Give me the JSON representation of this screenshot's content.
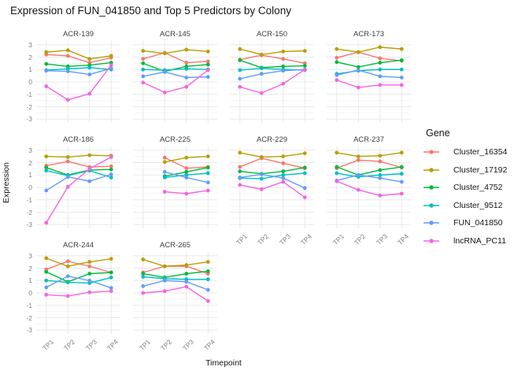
{
  "title": "Expression of FUN_041850 and Top 5 Predictors by Colony",
  "legend": {
    "title": "Gene",
    "entries": [
      {
        "label": "Cluster_16354",
        "color": "#F8766D"
      },
      {
        "label": "Cluster_17192",
        "color": "#B79F00"
      },
      {
        "label": "Cluster_4752",
        "color": "#00BA38"
      },
      {
        "label": "Cluster_9512",
        "color": "#00BFC4"
      },
      {
        "label": "FUN_041850",
        "color": "#619CFF"
      },
      {
        "label": "lncRNA_PC11",
        "color": "#F564E3"
      }
    ]
  },
  "chart_data": {
    "type": "line",
    "title": "Expression of FUN_041850 and Top 5 Predictors by Colony",
    "xlabel": "Timepoint",
    "ylabel": "Expression",
    "x": [
      "TP1",
      "TP2",
      "TP3",
      "TP4"
    ],
    "ylim": [
      -3,
      3
    ],
    "y_ticks": [
      3,
      2,
      1,
      0,
      -1,
      -2,
      -3
    ],
    "grid": "major+minor",
    "legend_position": "right",
    "series_names": [
      "Cluster_16354",
      "Cluster_17192",
      "Cluster_4752",
      "Cluster_9512",
      "FUN_041850",
      "lncRNA_PC11"
    ],
    "series_colors": [
      "#F8766D",
      "#B79F00",
      "#00BA38",
      "#00BFC4",
      "#619CFF",
      "#F564E3"
    ],
    "facets": [
      {
        "name": "ACR-139",
        "values": {
          "Cluster_16354": [
            2.2,
            2.1,
            1.55,
            1.95
          ],
          "Cluster_17192": [
            2.4,
            2.55,
            1.85,
            2.1
          ],
          "Cluster_4752": [
            1.45,
            1.25,
            1.35,
            1.55
          ],
          "Cluster_9512": [
            0.95,
            1.05,
            1.15,
            1.0
          ],
          "FUN_041850": [
            0.9,
            0.85,
            0.6,
            1.1
          ],
          "lncRNA_PC11": [
            -0.35,
            -1.45,
            -0.95,
            1.35
          ]
        }
      },
      {
        "name": "ACR-145",
        "values": {
          "Cluster_16354": [
            1.85,
            2.35,
            1.55,
            1.65
          ],
          "Cluster_17192": [
            2.5,
            2.3,
            2.6,
            2.45
          ],
          "Cluster_4752": [
            1.5,
            0.85,
            1.25,
            1.4
          ],
          "Cluster_9512": [
            1.0,
            0.95,
            1.05,
            1.0
          ],
          "FUN_041850": [
            0.45,
            0.8,
            0.35,
            0.4
          ],
          "lncRNA_PC11": [
            -0.05,
            -0.85,
            -0.4,
            0.95
          ]
        }
      },
      {
        "name": "ACR-150",
        "values": {
          "Cluster_16354": [
            1.8,
            2.15,
            1.85,
            1.5
          ],
          "Cluster_17192": [
            2.65,
            2.2,
            2.45,
            2.5
          ],
          "Cluster_4752": [
            1.75,
            1.15,
            1.25,
            1.3
          ],
          "Cluster_9512": [
            0.95,
            1.1,
            1.0,
            0.95
          ],
          "FUN_041850": [
            0.25,
            0.65,
            0.9,
            1.0
          ],
          "lncRNA_PC11": [
            -0.4,
            -0.9,
            -0.15,
            1.0
          ]
        }
      },
      {
        "name": "ACR-173",
        "values": {
          "Cluster_16354": [
            1.95,
            2.4,
            1.9,
            1.7
          ],
          "Cluster_17192": [
            2.65,
            2.4,
            2.8,
            2.65
          ],
          "Cluster_4752": [
            1.6,
            1.2,
            1.55,
            1.75
          ],
          "Cluster_9512": [
            0.65,
            0.9,
            1.0,
            1.0
          ],
          "FUN_041850": [
            0.55,
            0.95,
            0.45,
            0.35
          ],
          "lncRNA_PC11": [
            0.15,
            -0.45,
            -0.25,
            -0.25
          ]
        }
      },
      {
        "name": "ACR-186",
        "values": {
          "Cluster_16354": [
            1.75,
            2.1,
            1.65,
            1.7
          ],
          "Cluster_17192": [
            2.5,
            2.45,
            2.6,
            2.55
          ],
          "Cluster_4752": [
            1.6,
            1.0,
            1.4,
            1.45
          ],
          "Cluster_9512": [
            1.35,
            0.95,
            1.35,
            0.8
          ],
          "FUN_041850": [
            -0.25,
            0.85,
            0.5,
            1.05
          ],
          "lncRNA_PC11": [
            -2.85,
            0.05,
            1.5,
            2.45
          ]
        }
      },
      {
        "name": "ACR-225",
        "values": {
          "Cluster_16354": [
            null,
            2.4,
            1.55,
            1.65
          ],
          "Cluster_17192": [
            null,
            2.05,
            2.4,
            2.5
          ],
          "Cluster_4752": [
            null,
            0.9,
            1.25,
            1.6
          ],
          "Cluster_9512": [
            null,
            0.8,
            1.0,
            1.15
          ],
          "FUN_041850": [
            null,
            1.25,
            0.8,
            0.4
          ],
          "lncRNA_PC11": [
            null,
            -0.35,
            -0.5,
            -0.25
          ]
        }
      },
      {
        "name": "ACR-229",
        "values": {
          "Cluster_16354": [
            1.65,
            2.35,
            1.95,
            1.55
          ],
          "Cluster_17192": [
            2.8,
            2.45,
            2.5,
            2.75
          ],
          "Cluster_4752": [
            1.3,
            1.1,
            1.3,
            1.6
          ],
          "Cluster_9512": [
            0.75,
            0.7,
            1.0,
            1.15
          ],
          "FUN_041850": [
            0.8,
            1.05,
            0.75,
            -0.05
          ],
          "lncRNA_PC11": [
            0.2,
            -0.15,
            0.45,
            -0.8
          ]
        }
      },
      {
        "name": "ACR-237",
        "values": {
          "Cluster_16354": [
            1.55,
            2.2,
            2.1,
            1.6
          ],
          "Cluster_17192": [
            2.8,
            2.5,
            2.55,
            2.8
          ],
          "Cluster_4752": [
            1.65,
            1.0,
            1.4,
            1.65
          ],
          "Cluster_9512": [
            1.15,
            0.85,
            1.0,
            1.1
          ],
          "FUN_041850": [
            0.55,
            1.0,
            0.75,
            0.45
          ],
          "lncRNA_PC11": [
            0.5,
            -0.2,
            -0.65,
            -0.5
          ]
        }
      },
      {
        "name": "ACR-244",
        "values": {
          "Cluster_16354": [
            1.9,
            2.55,
            2.15,
            1.65
          ],
          "Cluster_17192": [
            2.8,
            2.15,
            2.5,
            2.75
          ],
          "Cluster_4752": [
            1.7,
            0.9,
            1.55,
            1.65
          ],
          "Cluster_9512": [
            1.0,
            0.85,
            0.8,
            1.25
          ],
          "FUN_041850": [
            0.45,
            1.35,
            1.0,
            0.4
          ],
          "lncRNA_PC11": [
            -0.15,
            -0.25,
            0.05,
            0.15
          ]
        }
      },
      {
        "name": "ACR-265",
        "values": {
          "Cluster_16354": [
            1.65,
            2.15,
            2.15,
            1.55
          ],
          "Cluster_17192": [
            2.7,
            2.15,
            2.25,
            2.5
          ],
          "Cluster_4752": [
            1.55,
            1.25,
            1.55,
            1.75
          ],
          "Cluster_9512": [
            1.3,
            1.15,
            1.1,
            1.1
          ],
          "FUN_041850": [
            0.55,
            1.0,
            0.9,
            0.25
          ],
          "lncRNA_PC11": [
            0.0,
            0.15,
            0.5,
            -0.65
          ]
        }
      }
    ]
  }
}
